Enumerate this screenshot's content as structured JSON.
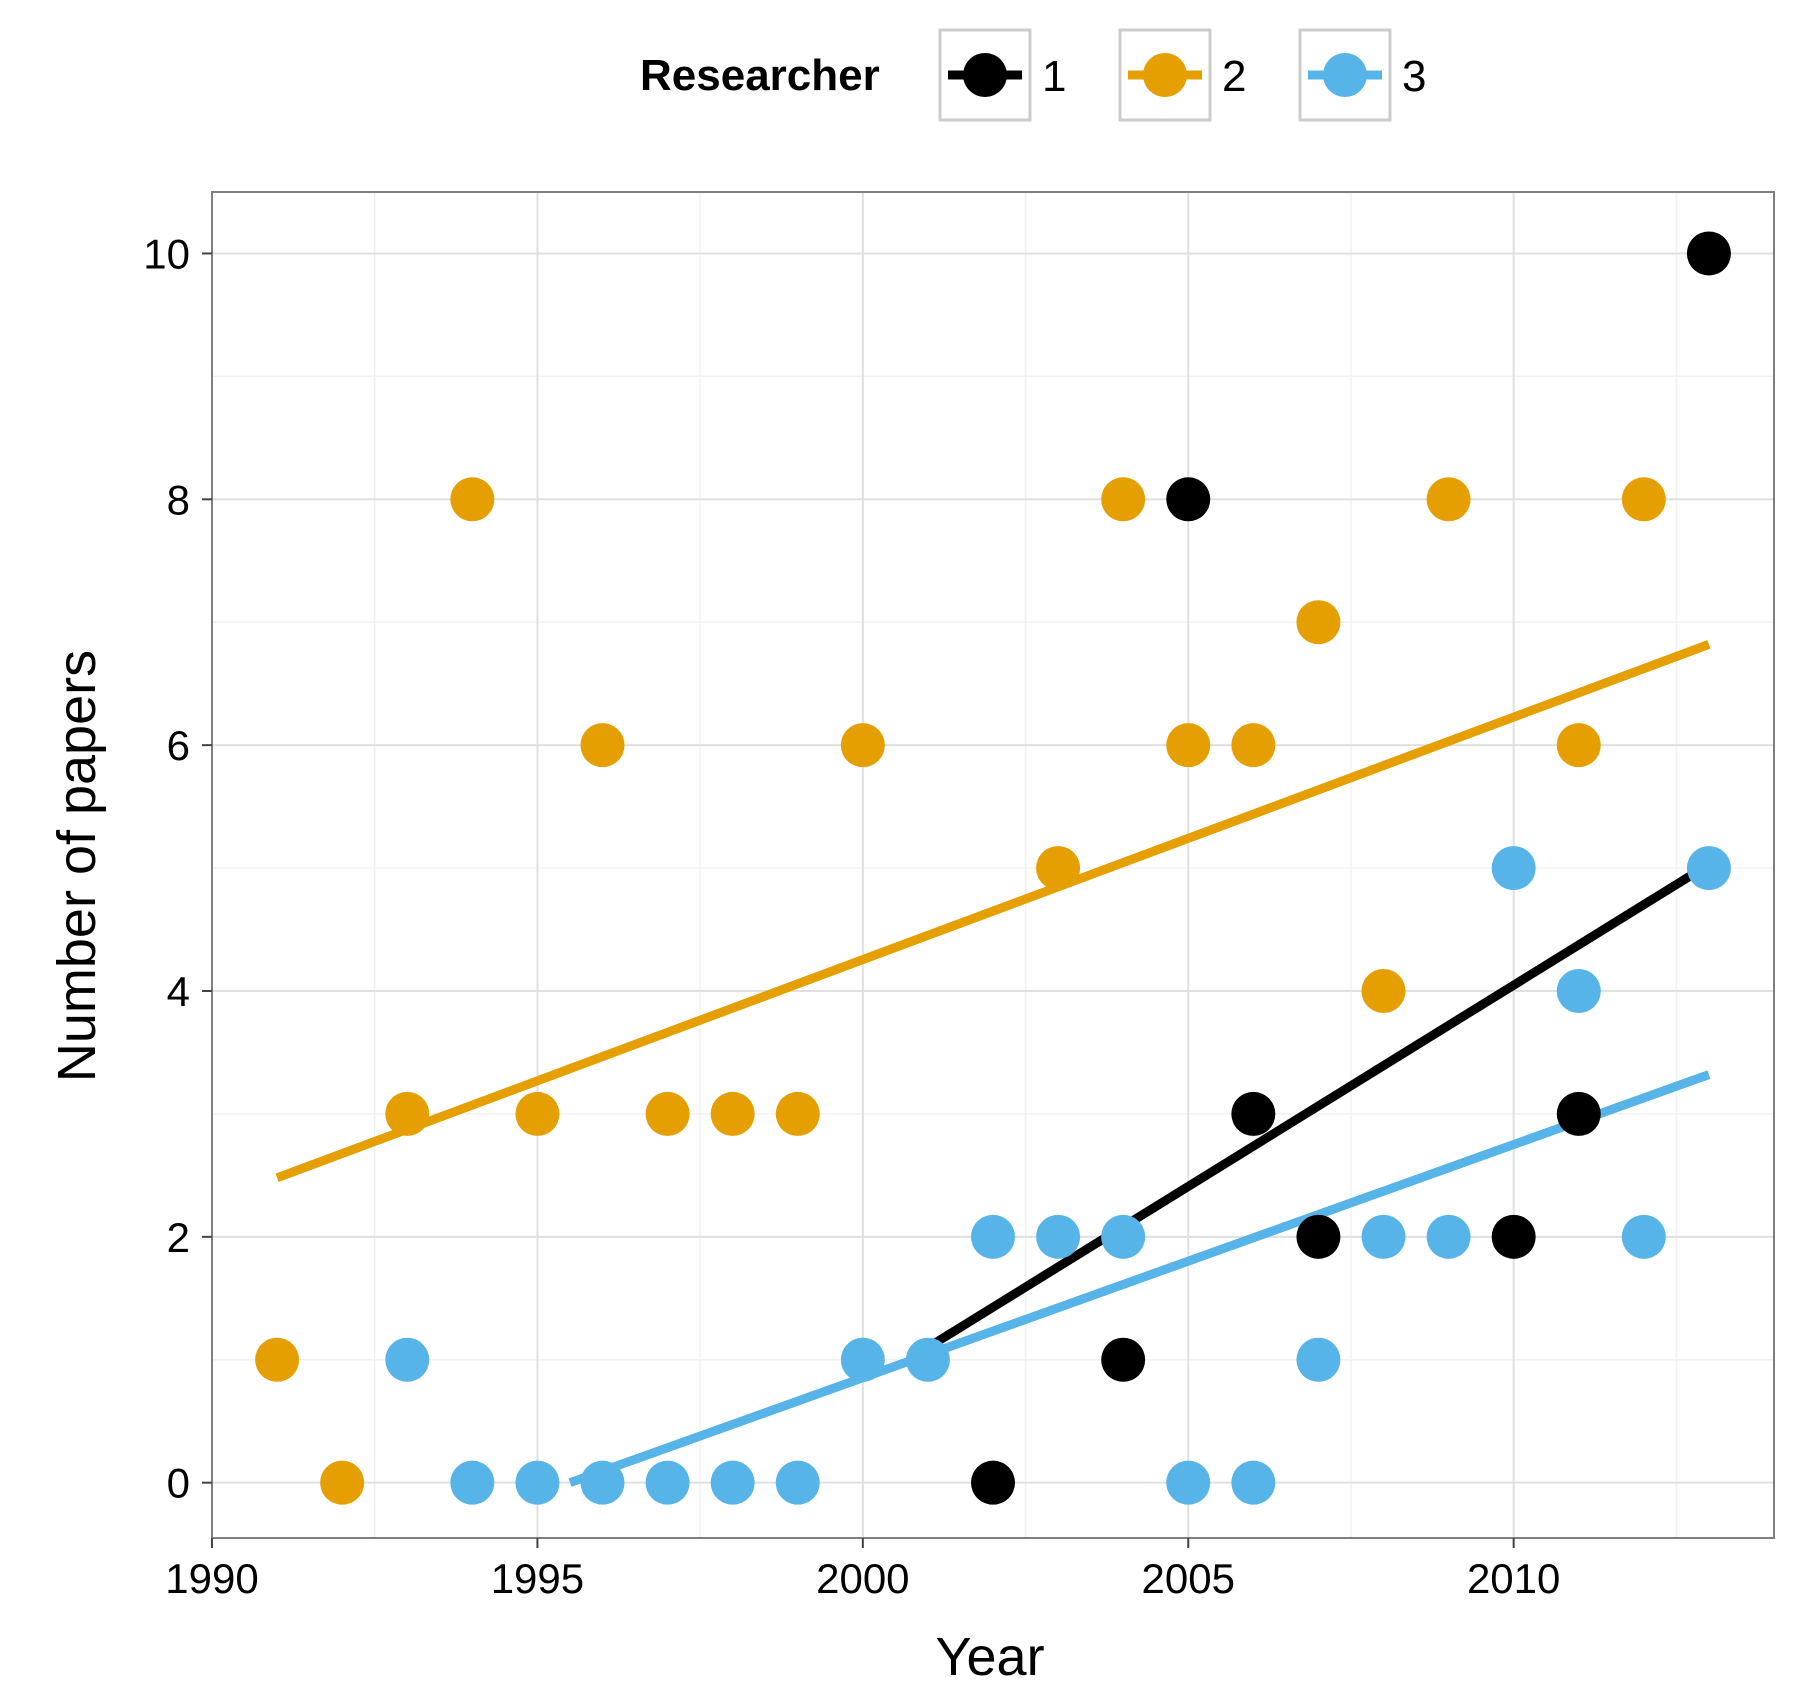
{
  "chart_data": {
    "type": "scatter",
    "xlabel": "Year",
    "ylabel": "Number of papers",
    "xlim": [
      1990,
      2014
    ],
    "ylim": [
      -0.45,
      10.5
    ],
    "x_ticks": [
      1990,
      1995,
      2000,
      2005,
      2010
    ],
    "y_ticks": [
      0,
      2,
      4,
      6,
      8,
      10
    ],
    "grid": true,
    "legend": {
      "title": "Researcher",
      "position": "top",
      "entries": [
        "1",
        "2",
        "3"
      ]
    },
    "series": [
      {
        "name": "1",
        "color": "#000000",
        "points": [
          [
            2002,
            0
          ],
          [
            2004,
            1
          ],
          [
            2005,
            8
          ],
          [
            2006,
            3
          ],
          [
            2007,
            2
          ],
          [
            2010,
            2
          ],
          [
            2011,
            3
          ],
          [
            2013,
            10
          ]
        ],
        "trend": [
          [
            2001,
            1.1
          ],
          [
            2013,
            5.03
          ]
        ]
      },
      {
        "name": "2",
        "color": "#E69F00",
        "points": [
          [
            1991,
            1
          ],
          [
            1992,
            0
          ],
          [
            1993,
            3
          ],
          [
            1994,
            8
          ],
          [
            1995,
            3
          ],
          [
            1996,
            6
          ],
          [
            1997,
            3
          ],
          [
            1998,
            3
          ],
          [
            1999,
            3
          ],
          [
            2000,
            6
          ],
          [
            2003,
            5
          ],
          [
            2004,
            8
          ],
          [
            2005,
            6
          ],
          [
            2006,
            6
          ],
          [
            2007,
            7
          ],
          [
            2008,
            4
          ],
          [
            2009,
            8
          ],
          [
            2011,
            6
          ],
          [
            2012,
            8
          ]
        ],
        "trend": [
          [
            1991,
            2.48
          ],
          [
            2013,
            6.82
          ]
        ]
      },
      {
        "name": "3",
        "color": "#56B4E9",
        "points": [
          [
            1993,
            1
          ],
          [
            1994,
            0
          ],
          [
            1995,
            0
          ],
          [
            1996,
            0
          ],
          [
            1997,
            0
          ],
          [
            1998,
            0
          ],
          [
            1999,
            0
          ],
          [
            2000,
            1
          ],
          [
            2001,
            1
          ],
          [
            2002,
            2
          ],
          [
            2003,
            2
          ],
          [
            2004,
            2
          ],
          [
            2005,
            0
          ],
          [
            2006,
            0
          ],
          [
            2007,
            1
          ],
          [
            2008,
            2
          ],
          [
            2009,
            2
          ],
          [
            2010,
            5
          ],
          [
            2011,
            4
          ],
          [
            2012,
            2
          ],
          [
            2013,
            5
          ]
        ],
        "trend": [
          [
            1995.5,
            0.0
          ],
          [
            2013,
            3.32
          ]
        ]
      }
    ]
  }
}
